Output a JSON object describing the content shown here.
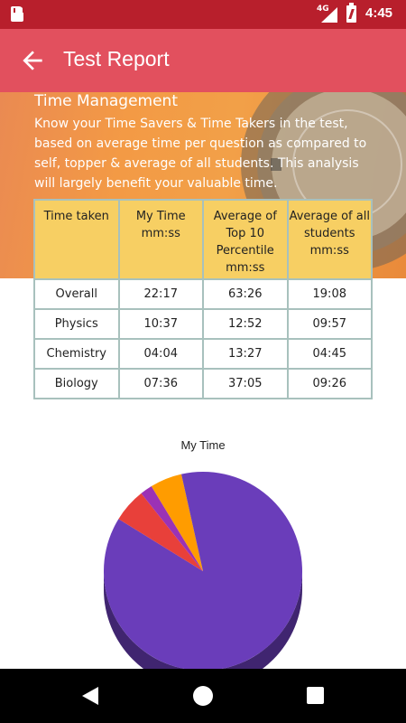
{
  "status_bar": {
    "network": "4G",
    "time": "4:45",
    "icons": [
      "sd-card-icon",
      "signal-icon",
      "battery-charging-icon"
    ]
  },
  "app_bar": {
    "title": "Test Report",
    "back_icon": "arrow-left-icon"
  },
  "banner": {
    "heading": "Time Management",
    "description": "Know your Time Savers & Time Takers in the test, based on average time per question as compared to self, topper & average of all students. This analysis will largely benefit your valuable time."
  },
  "table": {
    "headers": [
      "Time taken",
      "My Time mm:ss",
      "Average of Top 10 Percentile mm:ss",
      "Average of all students mm:ss"
    ],
    "rows": [
      [
        "Overall",
        "22:17",
        "63:26",
        "19:08"
      ],
      [
        "Physics",
        "10:37",
        "12:52",
        "09:57"
      ],
      [
        "Chemistry",
        "04:04",
        "13:27",
        "04:45"
      ],
      [
        "Biology",
        "07:36",
        "37:05",
        "09:26"
      ]
    ]
  },
  "chart_data": {
    "type": "pie",
    "title": "My Time",
    "slices": [
      {
        "value": 83.8,
        "color": "#6a3dba"
      },
      {
        "value": 5.5,
        "color": "#e8403a"
      },
      {
        "value": 2.0,
        "color": "#9b32b5"
      },
      {
        "value": 5.2,
        "color": "#ff9c00"
      },
      {
        "value": 3.5,
        "color": "#6a3dba"
      }
    ]
  },
  "nav_bar": {
    "icons": [
      "nav-back-icon",
      "nav-home-icon",
      "nav-recents-icon"
    ]
  },
  "colors": {
    "status_bar": "#b81f2c",
    "app_bar": "#e2505e",
    "table_header": "#f7cf63",
    "table_border": "#a8c1bd"
  }
}
